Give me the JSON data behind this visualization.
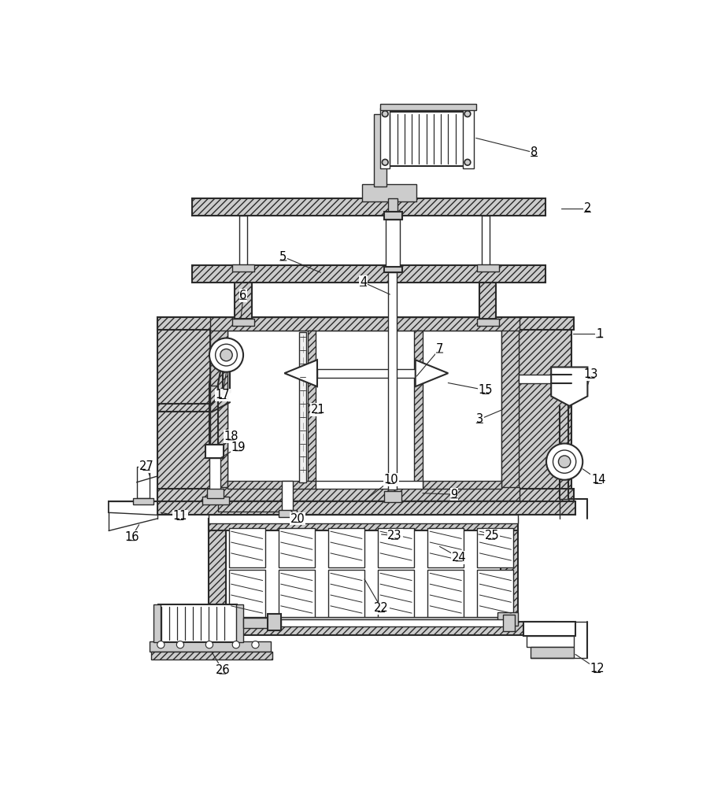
{
  "bg_color": "#ffffff",
  "lc": "#2a2a2a",
  "gf": "#cccccc",
  "figsize": [
    9.02,
    10.0
  ],
  "dpi": 100
}
